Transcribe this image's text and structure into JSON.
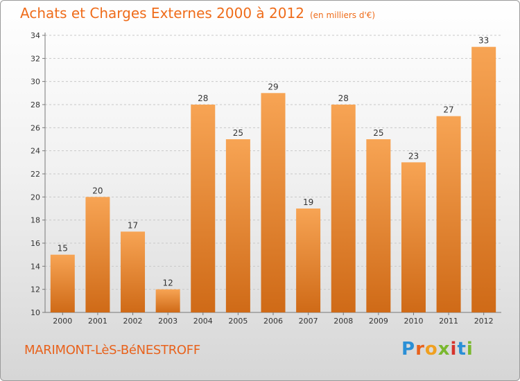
{
  "title": {
    "main": "Achats et Charges Externes 2000 à 2012",
    "unit": "(en milliers d'€)"
  },
  "commune": "MARIMONT-LèS-BéNESTROFF",
  "logo": {
    "letters": [
      "P",
      "r",
      "o",
      "x",
      "i",
      "t",
      "i"
    ],
    "colors": [
      "#2a8fd6",
      "#e8621c",
      "#f0a020",
      "#7ab82e",
      "#d6332c",
      "#2a8fd6",
      "#7ab82e"
    ]
  },
  "chart_data": {
    "type": "bar",
    "categories": [
      "2000",
      "2001",
      "2002",
      "2003",
      "2004",
      "2005",
      "2006",
      "2007",
      "2008",
      "2009",
      "2010",
      "2011",
      "2012"
    ],
    "values": [
      15,
      20,
      17,
      12,
      28,
      25,
      29,
      19,
      28,
      25,
      23,
      27,
      33
    ],
    "ylim": [
      10,
      34
    ],
    "yticks": [
      10,
      12,
      14,
      16,
      18,
      20,
      22,
      24,
      26,
      28,
      30,
      32,
      34
    ],
    "grid": true,
    "colors": {
      "bar_top": "#f7a454",
      "bar_bottom": "#cf6a17",
      "grid": "#c8c8c8",
      "axis": "#777777"
    }
  }
}
